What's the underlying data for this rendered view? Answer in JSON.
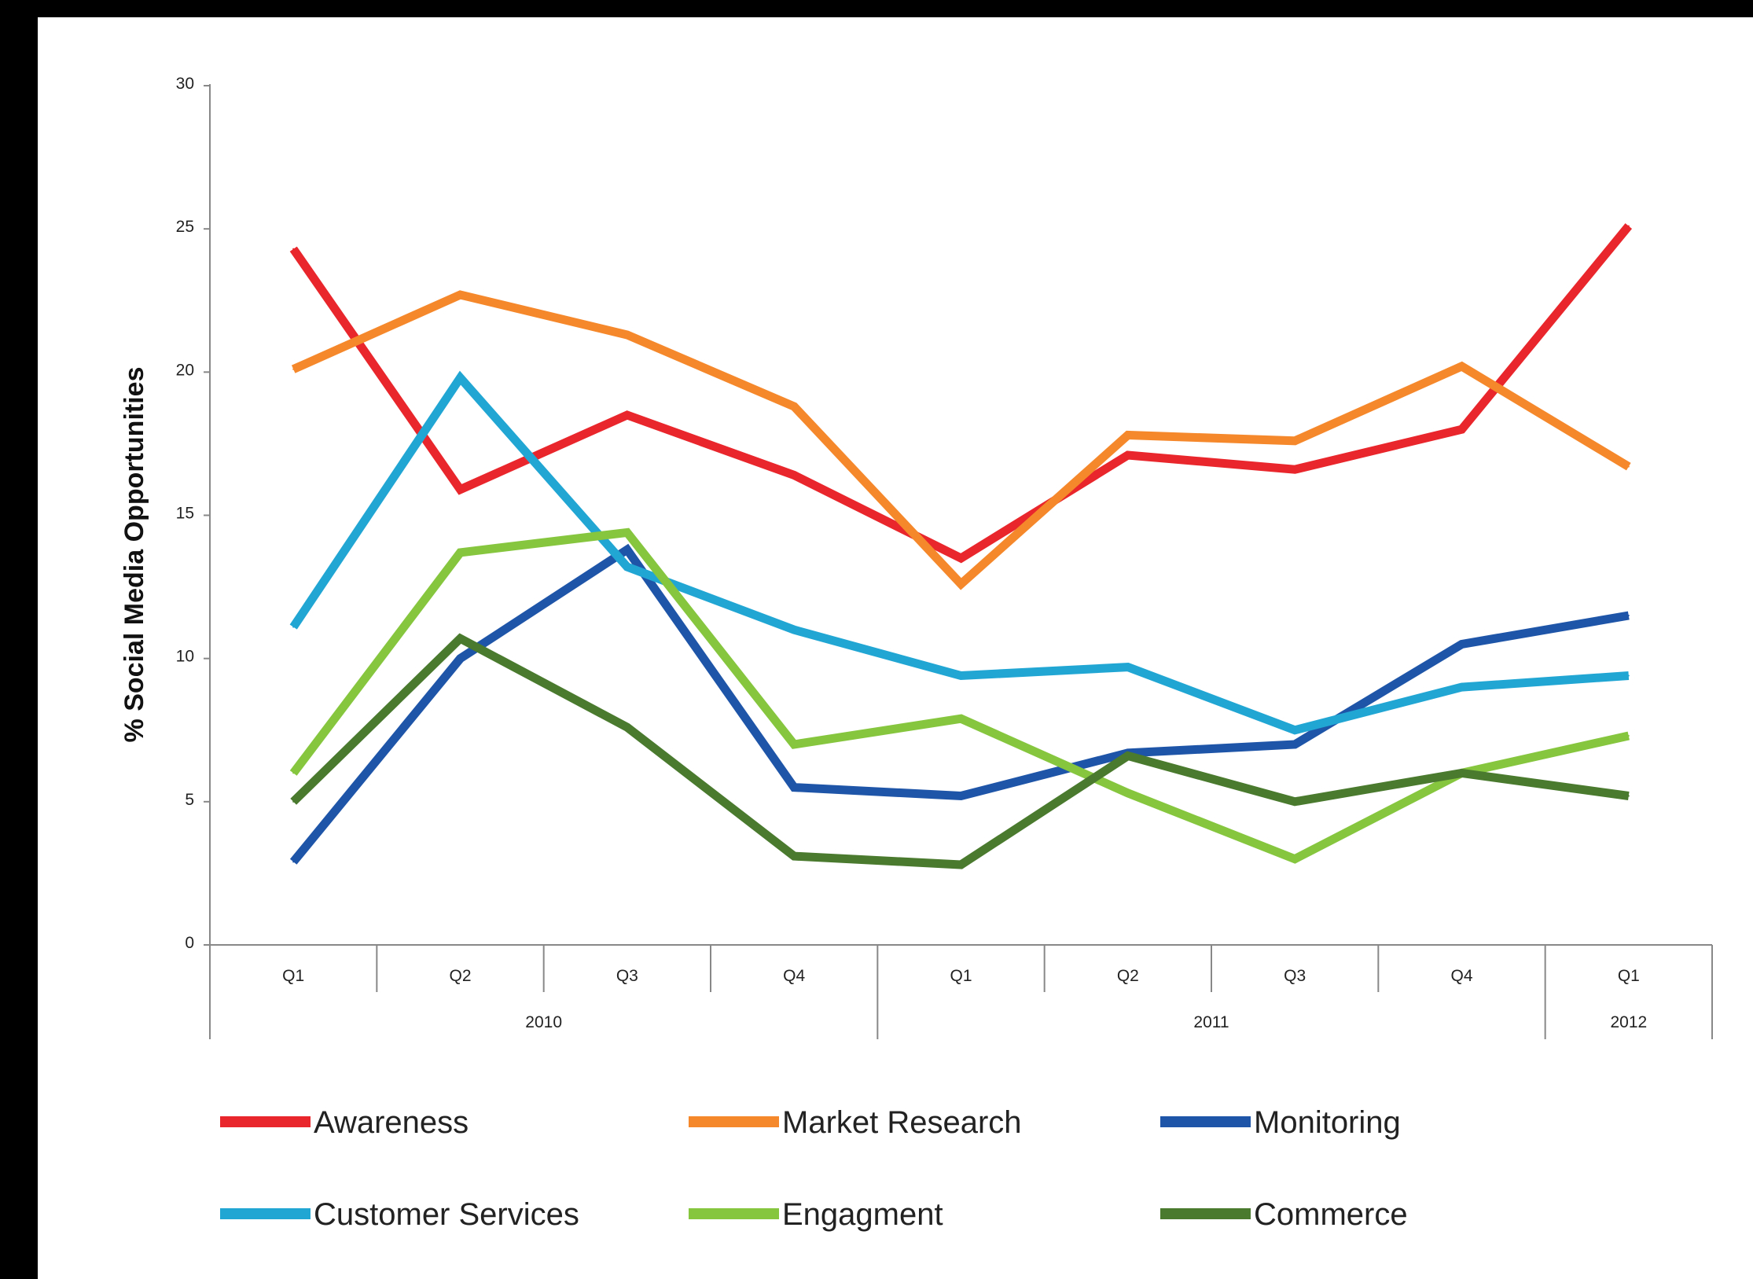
{
  "chart_data": {
    "type": "line",
    "title": "",
    "xlabel": "",
    "ylabel": "% Social Media Opportunities",
    "ylim": [
      0,
      30
    ],
    "yticks": [
      "0",
      "5",
      "10",
      "15",
      "20",
      "25",
      "30"
    ],
    "categories": [
      "Q1",
      "Q2",
      "Q3",
      "Q4",
      "Q1",
      "Q2",
      "Q3",
      "Q4",
      "Q1"
    ],
    "year_groups": [
      {
        "label": "2010",
        "quarters": 4
      },
      {
        "label": "2011",
        "quarters": 4
      },
      {
        "label": "2012",
        "quarters": 1
      }
    ],
    "grid": false,
    "legend_position": "bottom",
    "series": [
      {
        "name": "Awareness",
        "color": "#e8262b",
        "values": [
          24.3,
          15.9,
          18.5,
          16.4,
          13.5,
          17.1,
          16.6,
          18.0,
          25.1
        ]
      },
      {
        "name": "Market Research",
        "color": "#f5882b",
        "values": [
          20.1,
          22.7,
          21.3,
          18.8,
          12.6,
          17.8,
          17.6,
          20.2,
          16.7
        ]
      },
      {
        "name": "Monitoring",
        "color": "#1f55a8",
        "values": [
          2.9,
          10.0,
          13.8,
          5.5,
          5.2,
          6.7,
          7.0,
          10.5,
          11.5
        ]
      },
      {
        "name": "Customer Services",
        "color": "#21a6d4",
        "values": [
          11.1,
          19.8,
          13.2,
          11.0,
          9.4,
          9.7,
          7.5,
          9.0,
          9.4
        ]
      },
      {
        "name": "Engagment",
        "color": "#86c63f",
        "values": [
          6.0,
          13.7,
          14.4,
          7.0,
          7.9,
          5.3,
          3.0,
          6.0,
          7.3
        ]
      },
      {
        "name": "Commerce",
        "color": "#4a7a2e",
        "values": [
          5.0,
          10.7,
          7.6,
          3.1,
          2.8,
          6.6,
          5.0,
          6.0,
          5.2
        ]
      }
    ]
  }
}
